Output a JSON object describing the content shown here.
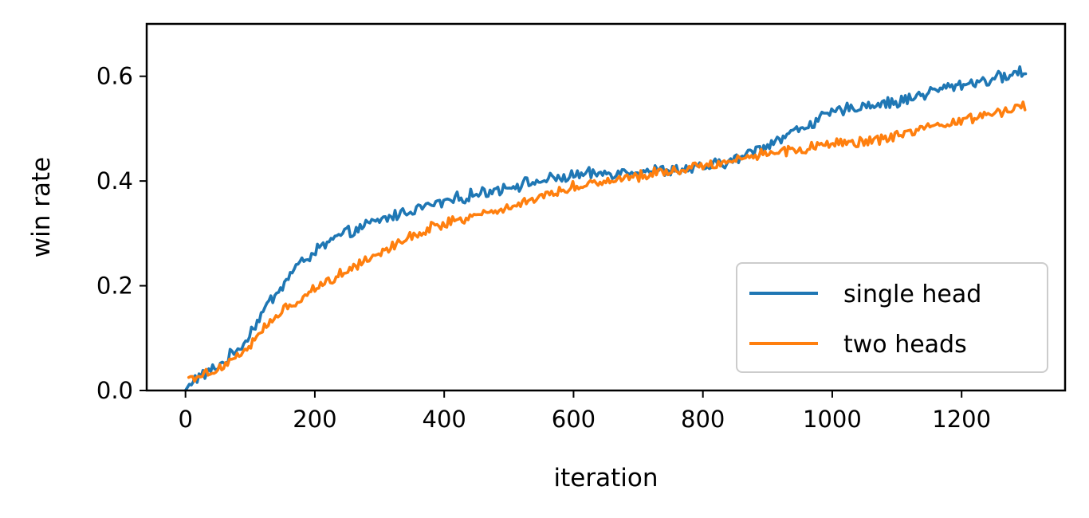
{
  "chart_data": {
    "type": "line",
    "title": "",
    "xlabel": "iteration",
    "ylabel": "win rate",
    "xlim": [
      -60,
      1360
    ],
    "ylim": [
      0.0,
      0.7
    ],
    "x_ticks": [
      "0",
      "200",
      "400",
      "600",
      "800",
      "1000",
      "1200"
    ],
    "y_ticks": [
      "0.0",
      "0.2",
      "0.4",
      "0.6"
    ],
    "grid": false,
    "legend": "lower-right",
    "series": [
      {
        "name": "single head",
        "color": "#1f77b4",
        "anchors": [
          [
            0,
            0.0
          ],
          [
            10,
            0.02
          ],
          [
            30,
            0.03
          ],
          [
            60,
            0.055
          ],
          [
            90,
            0.09
          ],
          [
            110,
            0.13
          ],
          [
            130,
            0.17
          ],
          [
            150,
            0.2
          ],
          [
            170,
            0.235
          ],
          [
            200,
            0.265
          ],
          [
            230,
            0.29
          ],
          [
            260,
            0.305
          ],
          [
            300,
            0.325
          ],
          [
            350,
            0.345
          ],
          [
            400,
            0.36
          ],
          [
            450,
            0.375
          ],
          [
            500,
            0.39
          ],
          [
            550,
            0.4
          ],
          [
            600,
            0.41
          ],
          [
            650,
            0.415
          ],
          [
            700,
            0.42
          ],
          [
            750,
            0.42
          ],
          [
            800,
            0.425
          ],
          [
            850,
            0.44
          ],
          [
            900,
            0.47
          ],
          [
            950,
            0.5
          ],
          [
            1000,
            0.53
          ],
          [
            1050,
            0.545
          ],
          [
            1100,
            0.55
          ],
          [
            1150,
            0.57
          ],
          [
            1200,
            0.585
          ],
          [
            1250,
            0.595
          ],
          [
            1300,
            0.61
          ]
        ]
      },
      {
        "name": "two heads",
        "color": "#ff7f0e",
        "anchors": [
          [
            5,
            0.025
          ],
          [
            30,
            0.03
          ],
          [
            60,
            0.05
          ],
          [
            90,
            0.075
          ],
          [
            110,
            0.1
          ],
          [
            130,
            0.13
          ],
          [
            160,
            0.16
          ],
          [
            200,
            0.195
          ],
          [
            250,
            0.23
          ],
          [
            300,
            0.265
          ],
          [
            350,
            0.295
          ],
          [
            400,
            0.32
          ],
          [
            450,
            0.335
          ],
          [
            500,
            0.35
          ],
          [
            550,
            0.37
          ],
          [
            600,
            0.39
          ],
          [
            650,
            0.4
          ],
          [
            700,
            0.41
          ],
          [
            750,
            0.42
          ],
          [
            800,
            0.43
          ],
          [
            850,
            0.44
          ],
          [
            900,
            0.455
          ],
          [
            950,
            0.46
          ],
          [
            1000,
            0.47
          ],
          [
            1050,
            0.475
          ],
          [
            1100,
            0.485
          ],
          [
            1150,
            0.5
          ],
          [
            1200,
            0.515
          ],
          [
            1250,
            0.53
          ],
          [
            1300,
            0.545
          ]
        ]
      }
    ]
  }
}
